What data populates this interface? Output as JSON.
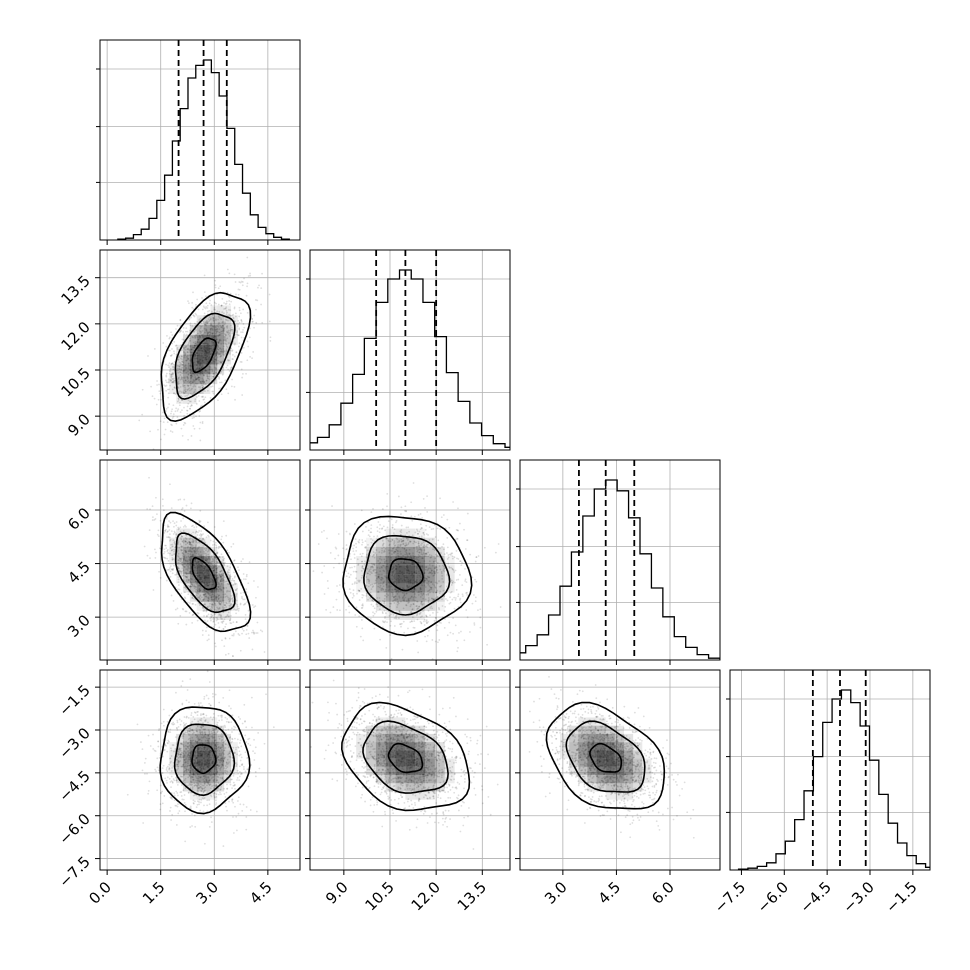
{
  "chart_data": {
    "type": "corner",
    "grid": true,
    "parameters": [
      {
        "mean": 2.7,
        "std": 0.6,
        "quantiles": [
          2.0,
          2.7,
          3.35
        ],
        "range": [
          -0.2,
          5.4
        ],
        "ticks": [
          0.0,
          1.5,
          3.0,
          4.5
        ],
        "tick_labels": [
          "0.0",
          "1.5",
          "3.0",
          "4.5"
        ]
      },
      {
        "mean": 11.0,
        "std": 1.0,
        "quantiles": [
          10.05,
          11.0,
          12.0
        ],
        "range": [
          7.9,
          14.4
        ],
        "ticks": [
          9.0,
          10.5,
          12.0,
          13.5
        ],
        "tick_labels": [
          "9.0",
          "10.5",
          "12.0",
          "13.5"
        ]
      },
      {
        "mean": 4.2,
        "std": 0.8,
        "quantiles": [
          3.45,
          4.2,
          5.0
        ],
        "range": [
          1.8,
          7.4
        ],
        "ticks": [
          3.0,
          4.5,
          6.0
        ],
        "tick_labels": [
          "3.0",
          "4.5",
          "6.0"
        ]
      },
      {
        "mean": -4.0,
        "std": 0.9,
        "quantiles": [
          -5.0,
          -4.05,
          -3.15
        ],
        "range": [
          -7.9,
          -0.9
        ],
        "ticks": [
          -7.5,
          -6.0,
          -4.5,
          -3.0,
          -1.5
        ],
        "tick_labels": [
          "−7.5",
          "−6.0",
          "−4.5",
          "−3.0",
          "−1.5"
        ]
      }
    ],
    "correlations": [
      {
        "row": 1,
        "col": 0,
        "rho": 0.55
      },
      {
        "row": 2,
        "col": 0,
        "rho": -0.6
      },
      {
        "row": 2,
        "col": 1,
        "rho": -0.05
      },
      {
        "row": 3,
        "col": 0,
        "rho": 0.0
      },
      {
        "row": 3,
        "col": 1,
        "rho": -0.3
      },
      {
        "row": 3,
        "col": 2,
        "rho": -0.35
      }
    ],
    "histograms": [
      [
        0.005,
        0.01,
        0.03,
        0.06,
        0.12,
        0.22,
        0.36,
        0.55,
        0.73,
        0.9,
        0.97,
        1.0,
        0.93,
        0.8,
        0.62,
        0.42,
        0.26,
        0.14,
        0.07,
        0.035,
        0.015,
        0.005
      ],
      [
        0.005,
        0.015,
        0.04,
        0.07,
        0.14,
        0.26,
        0.42,
        0.62,
        0.82,
        0.95,
        1.0,
        0.95,
        0.82,
        0.63,
        0.43,
        0.27,
        0.15,
        0.08,
        0.035,
        0.015,
        0.005
      ],
      [
        0.005,
        0.02,
        0.04,
        0.08,
        0.14,
        0.25,
        0.41,
        0.6,
        0.8,
        0.95,
        1.0,
        0.94,
        0.79,
        0.59,
        0.4,
        0.24,
        0.13,
        0.07,
        0.03,
        0.01
      ],
      [
        0.005,
        0.01,
        0.02,
        0.04,
        0.09,
        0.16,
        0.28,
        0.44,
        0.63,
        0.82,
        0.95,
        1.0,
        0.93,
        0.8,
        0.61,
        0.42,
        0.26,
        0.15,
        0.08,
        0.035,
        0.015,
        0.005
      ]
    ],
    "density_levels": [
      0.12,
      0.39,
      0.86
    ]
  }
}
